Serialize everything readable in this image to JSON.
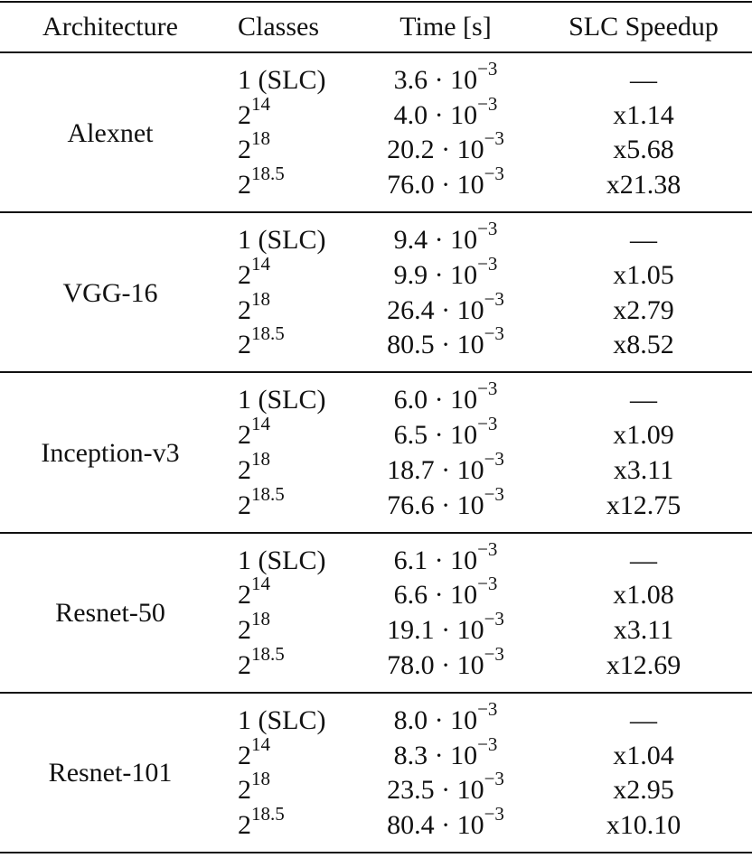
{
  "table": {
    "header": [
      "Architecture",
      "Classes",
      "Time [s]",
      "SLC Speedup"
    ],
    "groups": [
      {
        "architecture": "Alexnet",
        "rows": [
          {
            "classes": {
              "base": "1 (SLC)"
            },
            "time": {
              "coefficient": "3.6 · 10",
              "exponent": "−3"
            },
            "speedup": "—"
          },
          {
            "classes": {
              "base": "2",
              "exponent": "14"
            },
            "time": {
              "coefficient": "4.0 · 10",
              "exponent": "−3"
            },
            "speedup": "x1.14"
          },
          {
            "classes": {
              "base": "2",
              "exponent": "18"
            },
            "time": {
              "coefficient": "20.2 · 10",
              "exponent": "−3"
            },
            "speedup": "x5.68"
          },
          {
            "classes": {
              "base": "2",
              "exponent": "18.5"
            },
            "time": {
              "coefficient": "76.0 · 10",
              "exponent": "−3"
            },
            "speedup": "x21.38"
          }
        ]
      },
      {
        "architecture": "VGG-16",
        "rows": [
          {
            "classes": {
              "base": "1 (SLC)"
            },
            "time": {
              "coefficient": "9.4 · 10",
              "exponent": "−3"
            },
            "speedup": "—"
          },
          {
            "classes": {
              "base": "2",
              "exponent": "14"
            },
            "time": {
              "coefficient": "9.9 · 10",
              "exponent": "−3"
            },
            "speedup": "x1.05"
          },
          {
            "classes": {
              "base": "2",
              "exponent": "18"
            },
            "time": {
              "coefficient": "26.4 · 10",
              "exponent": "−3"
            },
            "speedup": "x2.79"
          },
          {
            "classes": {
              "base": "2",
              "exponent": "18.5"
            },
            "time": {
              "coefficient": "80.5 · 10",
              "exponent": "−3"
            },
            "speedup": "x8.52"
          }
        ]
      },
      {
        "architecture": "Inception-v3",
        "rows": [
          {
            "classes": {
              "base": "1 (SLC)"
            },
            "time": {
              "coefficient": "6.0 · 10",
              "exponent": "−3"
            },
            "speedup": "—"
          },
          {
            "classes": {
              "base": "2",
              "exponent": "14"
            },
            "time": {
              "coefficient": "6.5 · 10",
              "exponent": "−3"
            },
            "speedup": "x1.09"
          },
          {
            "classes": {
              "base": "2",
              "exponent": "18"
            },
            "time": {
              "coefficient": "18.7 · 10",
              "exponent": "−3"
            },
            "speedup": "x3.11"
          },
          {
            "classes": {
              "base": "2",
              "exponent": "18.5"
            },
            "time": {
              "coefficient": "76.6 · 10",
              "exponent": "−3"
            },
            "speedup": "x12.75"
          }
        ]
      },
      {
        "architecture": "Resnet-50",
        "rows": [
          {
            "classes": {
              "base": "1 (SLC)"
            },
            "time": {
              "coefficient": "6.1 · 10",
              "exponent": "−3"
            },
            "speedup": "—"
          },
          {
            "classes": {
              "base": "2",
              "exponent": "14"
            },
            "time": {
              "coefficient": "6.6 · 10",
              "exponent": "−3"
            },
            "speedup": "x1.08"
          },
          {
            "classes": {
              "base": "2",
              "exponent": "18"
            },
            "time": {
              "coefficient": "19.1 · 10",
              "exponent": "−3"
            },
            "speedup": "x3.11"
          },
          {
            "classes": {
              "base": "2",
              "exponent": "18.5"
            },
            "time": {
              "coefficient": "78.0 · 10",
              "exponent": "−3"
            },
            "speedup": "x12.69"
          }
        ]
      },
      {
        "architecture": "Resnet-101",
        "rows": [
          {
            "classes": {
              "base": "1 (SLC)"
            },
            "time": {
              "coefficient": "8.0 · 10",
              "exponent": "−3"
            },
            "speedup": "—"
          },
          {
            "classes": {
              "base": "2",
              "exponent": "14"
            },
            "time": {
              "coefficient": "8.3 · 10",
              "exponent": "−3"
            },
            "speedup": "x1.04"
          },
          {
            "classes": {
              "base": "2",
              "exponent": "18"
            },
            "time": {
              "coefficient": "23.5 · 10",
              "exponent": "−3"
            },
            "speedup": "x2.95"
          },
          {
            "classes": {
              "base": "2",
              "exponent": "18.5"
            },
            "time": {
              "coefficient": "80.4 · 10",
              "exponent": "−3"
            },
            "speedup": "x10.10"
          }
        ]
      }
    ]
  }
}
